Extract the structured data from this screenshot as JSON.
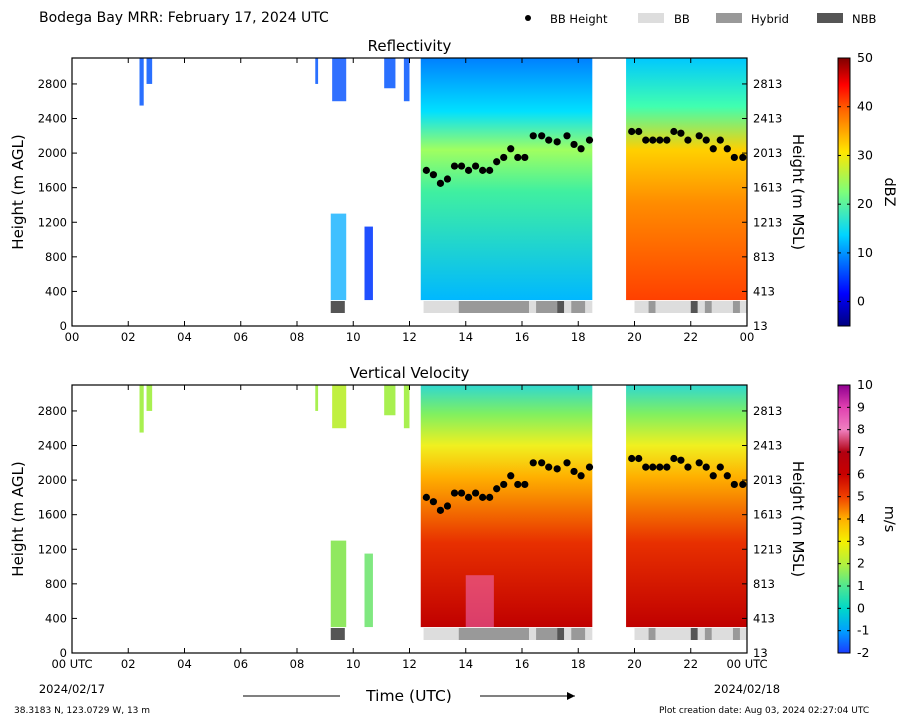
{
  "page": {
    "title": "Bodega Bay MRR:  February 17, 2024 UTC",
    "footer_left": "38.3183 N, 123.0729 W, 13 m",
    "footer_right": "Plot creation date: Aug 03, 2024 02:27:04 UTC"
  },
  "legend": {
    "items": [
      {
        "label": "BB Height",
        "color": "#000000",
        "kind": "dot"
      },
      {
        "label": "BB",
        "color": "#dddddd",
        "kind": "patch"
      },
      {
        "label": "Hybrid",
        "color": "#999999",
        "kind": "patch"
      },
      {
        "label": "NBB",
        "color": "#555555",
        "kind": "patch"
      }
    ]
  },
  "chart_data": [
    {
      "type": "heatmap",
      "title": "Reflectivity",
      "ylabel": "Height (m AGL)",
      "ylabel_right": "Height (m MSL)",
      "x_ticks": [
        "00",
        "02",
        "04",
        "06",
        "08",
        "10",
        "12",
        "14",
        "16",
        "18",
        "20",
        "22",
        "00"
      ],
      "y_ticks": [
        "0",
        "400",
        "800",
        "1200",
        "1600",
        "2000",
        "2400",
        "2800"
      ],
      "y_ticks_right": [
        "13",
        "413",
        "813",
        "1213",
        "1613",
        "2013",
        "2413",
        "2813"
      ],
      "xlim_hours": [
        0,
        24
      ],
      "ylim_m": [
        0,
        3100
      ],
      "colorbar": {
        "label": "dBZ",
        "ticks": [
          "50",
          "40",
          "30",
          "20",
          "10",
          "0"
        ],
        "range": [
          -5,
          50
        ],
        "colormap": "jet"
      },
      "bb_height_m": [
        [
          12.6,
          1800
        ],
        [
          12.85,
          1750
        ],
        [
          13.1,
          1650
        ],
        [
          13.35,
          1700
        ],
        [
          13.6,
          1850
        ],
        [
          13.85,
          1850
        ],
        [
          14.1,
          1800
        ],
        [
          14.35,
          1850
        ],
        [
          14.6,
          1800
        ],
        [
          14.85,
          1800
        ],
        [
          15.1,
          1900
        ],
        [
          15.35,
          1950
        ],
        [
          15.6,
          2050
        ],
        [
          15.85,
          1950
        ],
        [
          16.1,
          1950
        ],
        [
          16.4,
          2200
        ],
        [
          16.7,
          2200
        ],
        [
          16.95,
          2150
        ],
        [
          17.25,
          2130
        ],
        [
          17.6,
          2200
        ],
        [
          17.85,
          2100
        ],
        [
          18.1,
          2050
        ],
        [
          18.4,
          2150
        ],
        [
          19.9,
          2250
        ],
        [
          20.15,
          2250
        ],
        [
          20.4,
          2150
        ],
        [
          20.65,
          2150
        ],
        [
          20.9,
          2150
        ],
        [
          21.15,
          2150
        ],
        [
          21.4,
          2250
        ],
        [
          21.65,
          2230
        ],
        [
          21.9,
          2150
        ],
        [
          22.3,
          2200
        ],
        [
          22.55,
          2150
        ],
        [
          22.8,
          2050
        ],
        [
          23.05,
          2150
        ],
        [
          23.3,
          2050
        ],
        [
          23.55,
          1950
        ],
        [
          23.85,
          1950
        ]
      ],
      "bb_classification": [
        {
          "start": 9.2,
          "end": 9.7,
          "class": "NBB"
        },
        {
          "start": 12.5,
          "end": 13.75,
          "class": "BB"
        },
        {
          "start": 13.75,
          "end": 16.25,
          "class": "Hybrid"
        },
        {
          "start": 16.25,
          "end": 16.5,
          "class": "BB"
        },
        {
          "start": 16.5,
          "end": 17.25,
          "class": "Hybrid"
        },
        {
          "start": 17.25,
          "end": 17.5,
          "class": "NBB"
        },
        {
          "start": 17.5,
          "end": 17.75,
          "class": "BB"
        },
        {
          "start": 17.75,
          "end": 18.25,
          "class": "Hybrid"
        },
        {
          "start": 18.25,
          "end": 18.5,
          "class": "BB"
        },
        {
          "start": 20.0,
          "end": 20.5,
          "class": "BB"
        },
        {
          "start": 20.5,
          "end": 20.75,
          "class": "Hybrid"
        },
        {
          "start": 20.75,
          "end": 22.0,
          "class": "BB"
        },
        {
          "start": 22.0,
          "end": 22.25,
          "class": "NBB"
        },
        {
          "start": 22.25,
          "end": 22.5,
          "class": "BB"
        },
        {
          "start": 22.5,
          "end": 22.75,
          "class": "Hybrid"
        },
        {
          "start": 22.75,
          "end": 23.5,
          "class": "BB"
        },
        {
          "start": 23.5,
          "end": 23.75,
          "class": "Hybrid"
        },
        {
          "start": 23.75,
          "end": 24.0,
          "class": "BB"
        }
      ]
    },
    {
      "type": "heatmap",
      "title": "Vertical Velocity",
      "xlabel": "Time (UTC)",
      "ylabel": "Height (m AGL)",
      "ylabel_right": "Height (m MSL)",
      "x_ticks": [
        "00 UTC",
        "02",
        "04",
        "06",
        "08",
        "10",
        "12",
        "14",
        "16",
        "18",
        "20",
        "22",
        "00 UTC"
      ],
      "x_date_left": "2024/02/17",
      "x_date_right": "2024/02/18",
      "y_ticks": [
        "0",
        "400",
        "800",
        "1200",
        "1600",
        "2000",
        "2400",
        "2800"
      ],
      "y_ticks_right": [
        "13",
        "413",
        "813",
        "1213",
        "1613",
        "2013",
        "2413",
        "2813"
      ],
      "xlim_hours": [
        0,
        24
      ],
      "ylim_m": [
        0,
        3100
      ],
      "colorbar": {
        "label": "m/s",
        "ticks": [
          "10",
          "9",
          "8",
          "7",
          "6",
          "5",
          "4",
          "3",
          "2",
          "1",
          "0",
          "-1",
          "-2"
        ],
        "range": [
          -2,
          10
        ]
      },
      "shares_bb_overlay_with": "Reflectivity"
    }
  ]
}
